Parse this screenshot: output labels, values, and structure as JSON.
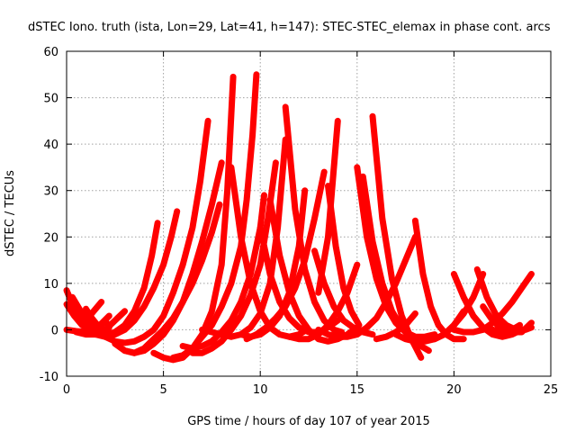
{
  "chart_data": {
    "type": "scatter",
    "title": "dSTEC Iono. truth (ista, Lon=29, Lat=41, h=147): STEC-STEC_elemax in phase cont. arcs",
    "xlabel": "GPS time / hours of day 107 of year 2015",
    "ylabel": "dSTEC  / TECUs",
    "xlim": [
      0,
      25
    ],
    "ylim": [
      -10,
      60
    ],
    "xticks": [
      0,
      5,
      10,
      15,
      20,
      25
    ],
    "yticks": [
      -10,
      0,
      10,
      20,
      30,
      40,
      50,
      60
    ],
    "grid": true,
    "marker": "+",
    "color": "#ff0000",
    "series": [
      {
        "x": [
          0.0,
          0.3,
          0.6,
          0.9,
          1.2
        ],
        "y": [
          8.5,
          5.5,
          3.0,
          1.0,
          0.0
        ]
      },
      {
        "x": [
          0.0,
          0.4,
          0.8,
          1.2,
          1.5
        ],
        "y": [
          5.5,
          3.0,
          1.0,
          0.0,
          -0.5
        ]
      },
      {
        "x": [
          0.0,
          0.5,
          1.0,
          1.6,
          2.2
        ],
        "y": [
          0.0,
          -0.3,
          -0.5,
          0.5,
          3.0
        ]
      },
      {
        "x": [
          0.3,
          0.8,
          1.3,
          1.9,
          2.4,
          2.9
        ],
        "y": [
          7.0,
          3.5,
          1.0,
          -0.5,
          -1.0,
          0.0
        ]
      },
      {
        "x": [
          0.5,
          1.0,
          1.5,
          2.0,
          2.5,
          3.0
        ],
        "y": [
          -0.5,
          -1.0,
          -1.0,
          0.0,
          2.0,
          4.0
        ]
      },
      {
        "x": [
          1.0,
          1.3,
          1.6,
          1.9
        ],
        "y": [
          4.5,
          2.5,
          1.0,
          0.0
        ]
      },
      {
        "x": [
          1.0,
          1.4,
          1.8
        ],
        "y": [
          2.0,
          4.0,
          6.0
        ]
      },
      {
        "x": [
          1.5,
          2.0,
          2.5,
          3.0,
          3.5,
          4.0,
          4.4,
          4.7
        ],
        "y": [
          -0.5,
          -1.0,
          -0.5,
          1.0,
          4.0,
          9.0,
          16.0,
          23.0
        ]
      },
      {
        "x": [
          1.5,
          2.0,
          2.5,
          3.0,
          3.5,
          4.0,
          4.5,
          5.0,
          5.4,
          5.7
        ],
        "y": [
          -1.0,
          -1.5,
          -1.0,
          0.0,
          2.0,
          5.0,
          9.0,
          14.0,
          20.0,
          25.5
        ]
      },
      {
        "x": [
          1.8,
          2.0,
          2.2
        ],
        "y": [
          1.0,
          2.0,
          0.5
        ]
      },
      {
        "x": [
          2.0,
          2.5,
          3.0,
          3.5,
          4.0,
          4.5,
          5.0,
          5.5,
          6.0,
          6.5,
          6.9,
          7.3
        ],
        "y": [
          -1.5,
          -2.5,
          -2.8,
          -2.5,
          -1.5,
          0.0,
          3.0,
          8.0,
          14.0,
          22.0,
          32.0,
          45.0
        ]
      },
      {
        "x": [
          2.5,
          3.0,
          3.5,
          4.0,
          4.5,
          5.0,
          5.5,
          6.0,
          6.5,
          7.0,
          7.5,
          8.0
        ],
        "y": [
          -3.0,
          -4.5,
          -5.0,
          -4.5,
          -3.0,
          -1.0,
          2.0,
          6.0,
          12.0,
          19.0,
          27.0,
          36.0
        ]
      },
      {
        "x": [
          3.0,
          3.5,
          4.0,
          4.5,
          5.0,
          5.5,
          6.0,
          6.5,
          7.0,
          7.5,
          7.9
        ],
        "y": [
          -4.5,
          -5.0,
          -4.0,
          -2.0,
          0.0,
          2.5,
          6.0,
          10.0,
          15.0,
          21.0,
          27.0
        ]
      },
      {
        "x": [
          4.5,
          5.0,
          5.5,
          6.0,
          6.5,
          7.0,
          7.5,
          8.0,
          8.3,
          8.6
        ],
        "y": [
          -5.0,
          -6.0,
          -6.5,
          -6.0,
          -4.0,
          -1.0,
          4.0,
          14.0,
          30.0,
          54.5
        ]
      },
      {
        "x": [
          5.5,
          6.0,
          6.5,
          7.0,
          7.5,
          8.0,
          8.5,
          9.0,
          9.3,
          9.6,
          9.8
        ],
        "y": [
          -6.0,
          -5.5,
          -4.0,
          -1.5,
          1.0,
          5.0,
          10.0,
          18.0,
          28.0,
          42.0,
          55.0
        ]
      },
      {
        "x": [
          6.0,
          6.5,
          7.0,
          7.5,
          8.0,
          8.5,
          9.0,
          9.5,
          10.0,
          10.2
        ],
        "y": [
          -3.5,
          -4.0,
          -3.5,
          -2.5,
          -0.5,
          2.0,
          6.0,
          12.0,
          22.0,
          29.0
        ]
      },
      {
        "x": [
          6.5,
          7.0,
          7.5,
          8.0,
          8.5,
          9.0,
          9.5,
          10.0,
          10.4,
          10.8
        ],
        "y": [
          -5.0,
          -5.0,
          -4.0,
          -2.5,
          0.0,
          3.0,
          7.5,
          14.0,
          24.0,
          36.0
        ]
      },
      {
        "x": [
          7.0,
          7.5,
          8.0,
          8.5,
          9.0,
          9.5,
          10.0,
          10.5,
          10.9,
          11.3
        ],
        "y": [
          0.0,
          -0.5,
          -1.0,
          -1.5,
          -1.0,
          0.5,
          3.5,
          10.0,
          22.0,
          41.0
        ]
      },
      {
        "x": [
          8.5,
          9.0,
          9.5,
          10.0,
          10.5,
          11.0,
          11.5,
          12.0,
          12.4
        ],
        "y": [
          35.0,
          20.0,
          10.0,
          4.0,
          0.5,
          -1.0,
          -1.5,
          -1.0,
          0.0
        ]
      },
      {
        "x": [
          9.0,
          9.5,
          10.0,
          10.5,
          11.0,
          11.5,
          12.0,
          12.3
        ],
        "y": [
          -1.0,
          -1.5,
          -1.0,
          0.5,
          3.0,
          8.0,
          18.0,
          30.0
        ]
      },
      {
        "x": [
          9.3,
          9.8,
          10.3,
          10.8,
          11.3,
          11.8,
          12.3,
          12.8,
          13.3
        ],
        "y": [
          -2.0,
          -1.0,
          0.5,
          2.5,
          5.0,
          9.0,
          15.0,
          24.0,
          34.0
        ]
      },
      {
        "x": [
          10.0,
          10.5,
          11.0,
          11.5,
          12.0,
          12.5,
          13.0,
          13.5,
          14.0
        ],
        "y": [
          22.0,
          12.0,
          6.0,
          2.5,
          0.5,
          -0.5,
          -0.5,
          0.5,
          2.0
        ]
      },
      {
        "x": [
          10.5,
          11.0,
          11.5,
          12.0,
          12.5,
          13.0,
          13.5,
          14.0,
          14.5,
          15.0
        ],
        "y": [
          28.0,
          16.0,
          8.0,
          3.0,
          0.0,
          -2.0,
          -2.5,
          -2.0,
          -1.0,
          0.5
        ]
      },
      {
        "x": [
          11.3,
          11.8,
          12.3,
          12.8,
          13.3,
          13.8,
          14.2
        ],
        "y": [
          48.0,
          26.0,
          13.0,
          6.0,
          2.0,
          0.0,
          -0.5
        ]
      },
      {
        "x": [
          11.5,
          12.0,
          12.5,
          13.0,
          13.5,
          14.0,
          14.5,
          15.0
        ],
        "y": [
          -1.5,
          -2.0,
          -2.0,
          -1.0,
          1.0,
          4.0,
          8.0,
          14.0
        ]
      },
      {
        "x": [
          12.8,
          13.3,
          13.8,
          14.3,
          14.8,
          15.3,
          15.8
        ],
        "y": [
          17.0,
          10.0,
          5.0,
          2.0,
          0.5,
          -0.5,
          -1.0
        ]
      },
      {
        "x": [
          13.0,
          13.5,
          14.0
        ],
        "y": [
          8.0,
          20.0,
          45.0
        ]
      },
      {
        "x": [
          13.0,
          13.5,
          14.0,
          14.5,
          15.0,
          15.5,
          16.0,
          16.5,
          17.0,
          17.5,
          18.0
        ],
        "y": [
          0.0,
          -1.0,
          -1.5,
          -1.5,
          -1.0,
          0.5,
          2.5,
          6.0,
          10.0,
          15.0,
          20.0
        ]
      },
      {
        "x": [
          13.5,
          13.9,
          14.3,
          14.7,
          15.1
        ],
        "y": [
          31.0,
          18.0,
          9.0,
          4.0,
          1.0
        ]
      },
      {
        "x": [
          15.0,
          15.5,
          16.0,
          16.5,
          17.0,
          17.5,
          18.0,
          18.5,
          19.0
        ],
        "y": [
          35.0,
          20.0,
          11.0,
          5.0,
          1.5,
          -0.5,
          -1.5,
          -1.5,
          -1.0
        ]
      },
      {
        "x": [
          15.3,
          15.8,
          16.3,
          16.8,
          17.3,
          17.8,
          18.3,
          18.7
        ],
        "y": [
          33.0,
          19.0,
          10.0,
          4.0,
          0.5,
          -2.0,
          -3.5,
          -4.5
        ]
      },
      {
        "x": [
          15.8,
          16.3,
          16.8,
          17.3,
          17.8,
          18.3
        ],
        "y": [
          46.0,
          24.0,
          11.0,
          3.0,
          -2.0,
          -6.0
        ]
      },
      {
        "x": [
          16.0,
          16.5,
          17.0,
          17.5,
          18.0
        ],
        "y": [
          -2.0,
          -1.5,
          -0.5,
          1.0,
          3.5
        ]
      },
      {
        "x": [
          17.0,
          17.5,
          18.0,
          18.5,
          19.0,
          19.5,
          20.0,
          20.5
        ],
        "y": [
          -1.0,
          -2.0,
          -2.5,
          -2.5,
          -2.0,
          -1.0,
          1.0,
          4.0
        ]
      },
      {
        "x": [
          18.0,
          18.4,
          18.8,
          19.2,
          19.6,
          20.0,
          20.5
        ],
        "y": [
          23.5,
          12.0,
          5.0,
          1.0,
          -1.0,
          -2.0,
          -2.0
        ]
      },
      {
        "x": [
          18.5,
          19.0,
          19.5,
          20.0,
          20.5,
          21.0,
          21.5
        ],
        "y": [
          -2.0,
          -2.0,
          -1.0,
          1.0,
          3.5,
          7.0,
          12.0
        ]
      },
      {
        "x": [
          20.0,
          20.5,
          21.0,
          21.5,
          22.0,
          22.5,
          23.0,
          23.5
        ],
        "y": [
          12.0,
          7.0,
          3.0,
          0.5,
          -1.0,
          -1.5,
          -1.0,
          0.0
        ]
      },
      {
        "x": [
          20.0,
          20.5,
          21.0,
          21.5,
          22.0,
          22.5,
          23.0,
          23.5,
          24.0
        ],
        "y": [
          0.0,
          -0.5,
          -0.5,
          0.0,
          1.5,
          3.5,
          6.0,
          9.0,
          12.0
        ]
      },
      {
        "x": [
          21.2,
          21.7,
          22.2,
          22.7,
          23.2,
          23.7,
          24.0
        ],
        "y": [
          13.0,
          7.0,
          3.0,
          1.0,
          0.0,
          0.0,
          0.5
        ]
      },
      {
        "x": [
          21.5,
          22.0,
          22.5,
          23.0,
          23.5,
          24.0
        ],
        "y": [
          5.0,
          2.0,
          0.0,
          -0.5,
          -0.5,
          1.5
        ]
      },
      {
        "x": [
          22.0,
          22.5,
          23.0,
          23.4
        ],
        "y": [
          0.0,
          -0.5,
          0.0,
          1.0
        ]
      }
    ]
  }
}
